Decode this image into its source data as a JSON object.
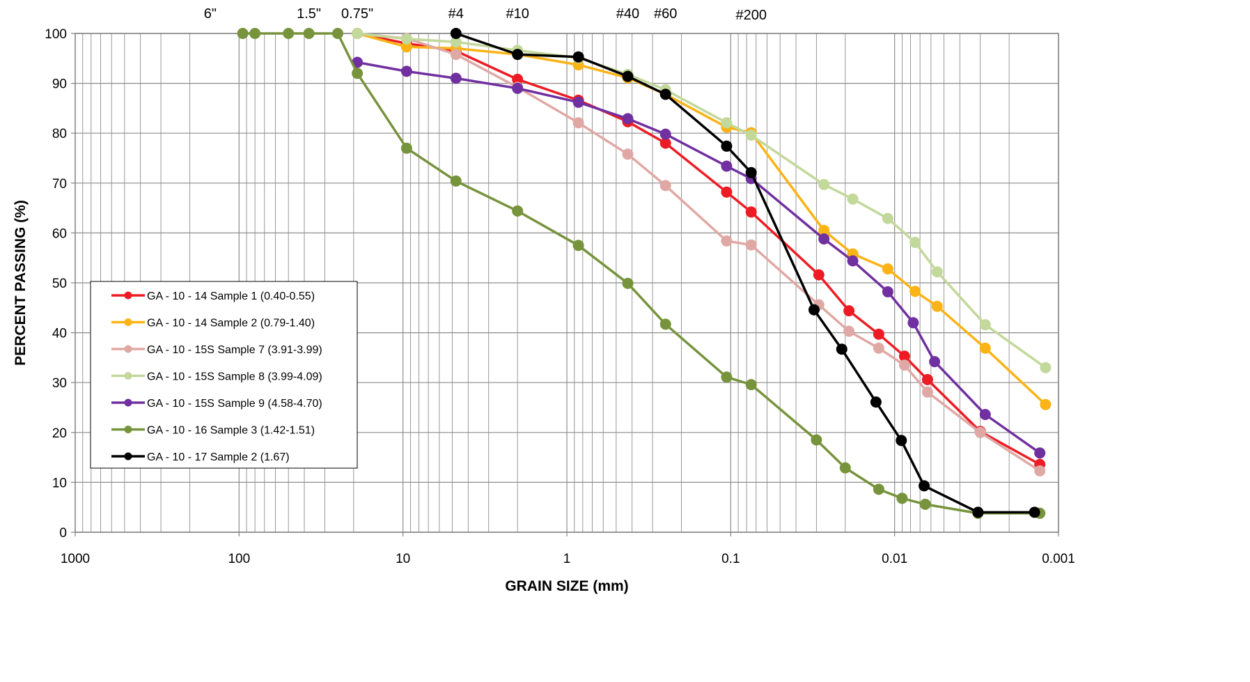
{
  "chart_data": {
    "type": "scatter",
    "xlabel": "GRAIN SIZE (mm)",
    "ylabel": "PERCENT PASSING (%)",
    "x_scale": "log",
    "x_reversed": true,
    "xlim": [
      1000,
      0.001
    ],
    "ylim": [
      0,
      100
    ],
    "grid": true,
    "legend_position": "lower-left",
    "x_ticks": [
      {
        "value": 1000,
        "label": "1000"
      },
      {
        "value": 100,
        "label": "100"
      },
      {
        "value": 10,
        "label": "10"
      },
      {
        "value": 1,
        "label": "1"
      },
      {
        "value": 0.1,
        "label": "0.1"
      },
      {
        "value": 0.01,
        "label": "0.01"
      },
      {
        "value": 0.001,
        "label": "0.001"
      }
    ],
    "y_ticks": [
      {
        "value": 0,
        "label": "0"
      },
      {
        "value": 10,
        "label": "10"
      },
      {
        "value": 20,
        "label": "20"
      },
      {
        "value": 30,
        "label": "30"
      },
      {
        "value": 40,
        "label": "40"
      },
      {
        "value": 50,
        "label": "50"
      },
      {
        "value": 60,
        "label": "60"
      },
      {
        "value": 70,
        "label": "70"
      },
      {
        "value": 80,
        "label": "80"
      },
      {
        "value": 90,
        "label": "90"
      },
      {
        "value": 100,
        "label": "100"
      }
    ],
    "sieve_labels": [
      {
        "label": "6\"",
        "value": 150
      },
      {
        "label": "1.5\"",
        "value": 37.5
      },
      {
        "label": "0.75\"",
        "value": 19
      },
      {
        "label": "#4",
        "value": 4.75
      },
      {
        "label": "#10",
        "value": 2
      },
      {
        "label": "#40",
        "value": 0.425
      },
      {
        "label": "#60",
        "value": 0.25
      },
      {
        "label": "#200",
        "value": 0.075
      }
    ],
    "series": [
      {
        "name": "GA - 10 - 14 Sample 1 (0.40-0.55)",
        "color": "#ed1c24",
        "points": [
          [
            19,
            100
          ],
          [
            9.5,
            98
          ],
          [
            4.75,
            96.5
          ],
          [
            2,
            90.8
          ],
          [
            0.85,
            86.6
          ],
          [
            0.425,
            82.3
          ],
          [
            0.25,
            78
          ],
          [
            0.106,
            68.2
          ],
          [
            0.075,
            64.2
          ],
          [
            0.029,
            51.6
          ],
          [
            0.019,
            44.4
          ],
          [
            0.0125,
            39.7
          ],
          [
            0.0087,
            35.3
          ],
          [
            0.0063,
            30.6
          ],
          [
            0.003,
            20.2
          ],
          [
            0.0013,
            13.6
          ]
        ]
      },
      {
        "name": "GA - 10 - 14 Sample 2 (0.79-1.40)",
        "color": "#fbb316",
        "points": [
          [
            19,
            100
          ],
          [
            9.5,
            97.3
          ],
          [
            4.75,
            97
          ],
          [
            2,
            95.8
          ],
          [
            0.85,
            93.7
          ],
          [
            0.425,
            91.1
          ],
          [
            0.25,
            87.8
          ],
          [
            0.106,
            81.2
          ],
          [
            0.075,
            80.1
          ],
          [
            0.027,
            60.5
          ],
          [
            0.018,
            55.8
          ],
          [
            0.011,
            52.8
          ],
          [
            0.0075,
            48.3
          ],
          [
            0.0055,
            45.3
          ],
          [
            0.0028,
            36.9
          ],
          [
            0.0012,
            25.6
          ]
        ]
      },
      {
        "name": "GA - 10 - 15S Sample 7 (3.91-3.99)",
        "color": "#e0a8a4",
        "points": [
          [
            19,
            100
          ],
          [
            9.5,
            99
          ],
          [
            4.75,
            95.8
          ],
          [
            2,
            89.2
          ],
          [
            0.85,
            82.1
          ],
          [
            0.425,
            75.8
          ],
          [
            0.25,
            69.5
          ],
          [
            0.106,
            58.4
          ],
          [
            0.075,
            57.6
          ],
          [
            0.029,
            45.6
          ],
          [
            0.019,
            40.3
          ],
          [
            0.0125,
            36.9
          ],
          [
            0.0087,
            33.5
          ],
          [
            0.0063,
            28.1
          ],
          [
            0.003,
            20
          ],
          [
            0.0013,
            12.3
          ]
        ]
      },
      {
        "name": "GA - 10 - 15S Sample 8 (3.99-4.09)",
        "color": "#c3d89b",
        "points": [
          [
            19,
            100
          ],
          [
            9.5,
            98.9
          ],
          [
            4.75,
            98.3
          ],
          [
            2,
            96.6
          ],
          [
            0.85,
            95.1
          ],
          [
            0.425,
            91.8
          ],
          [
            0.25,
            88.7
          ],
          [
            0.106,
            82.1
          ],
          [
            0.075,
            79.6
          ],
          [
            0.027,
            69.7
          ],
          [
            0.018,
            66.8
          ],
          [
            0.011,
            62.9
          ],
          [
            0.0075,
            58.1
          ],
          [
            0.0055,
            52.2
          ],
          [
            0.0028,
            41.6
          ],
          [
            0.0012,
            33
          ]
        ]
      },
      {
        "name": "GA - 10 - 15S Sample 9 (4.58-4.70)",
        "color": "#7030a0",
        "points": [
          [
            19,
            94.2
          ],
          [
            9.5,
            92.4
          ],
          [
            4.75,
            91
          ],
          [
            2,
            89
          ],
          [
            0.85,
            86.2
          ],
          [
            0.425,
            82.9
          ],
          [
            0.25,
            79.8
          ],
          [
            0.106,
            73.4
          ],
          [
            0.075,
            70.9
          ],
          [
            0.027,
            58.8
          ],
          [
            0.018,
            54.4
          ],
          [
            0.011,
            48.2
          ],
          [
            0.0077,
            42
          ],
          [
            0.0057,
            34.2
          ],
          [
            0.0028,
            23.6
          ],
          [
            0.0013,
            15.9
          ]
        ]
      },
      {
        "name": "GA - 10 - 16 Sample 3 (1.42-1.51)",
        "color": "#77933c",
        "points": [
          [
            95,
            100
          ],
          [
            80,
            100
          ],
          [
            50,
            100
          ],
          [
            37.5,
            100
          ],
          [
            25,
            100
          ],
          [
            19,
            92
          ],
          [
            9.5,
            77
          ],
          [
            4.75,
            70.4
          ],
          [
            2,
            64.4
          ],
          [
            0.85,
            57.5
          ],
          [
            0.425,
            49.9
          ],
          [
            0.25,
            41.7
          ],
          [
            0.106,
            31.1
          ],
          [
            0.075,
            29.6
          ],
          [
            0.03,
            18.5
          ],
          [
            0.02,
            12.9
          ],
          [
            0.0125,
            8.6
          ],
          [
            0.009,
            6.8
          ],
          [
            0.0065,
            5.6
          ],
          [
            0.0031,
            3.8
          ],
          [
            0.0013,
            3.8
          ]
        ]
      },
      {
        "name": "GA - 10 - 17 Sample 2 (1.67)",
        "color": "#000000",
        "points": [
          [
            4.75,
            100
          ],
          [
            2,
            95.8
          ],
          [
            0.85,
            95.3
          ],
          [
            0.425,
            91.4
          ],
          [
            0.25,
            87.8
          ],
          [
            0.106,
            77.4
          ],
          [
            0.075,
            72.1
          ],
          [
            0.031,
            44.6
          ],
          [
            0.021,
            36.7
          ],
          [
            0.013,
            26.1
          ],
          [
            0.0091,
            18.4
          ],
          [
            0.0066,
            9.3
          ],
          [
            0.0031,
            4
          ],
          [
            0.0014,
            4
          ]
        ]
      }
    ]
  }
}
